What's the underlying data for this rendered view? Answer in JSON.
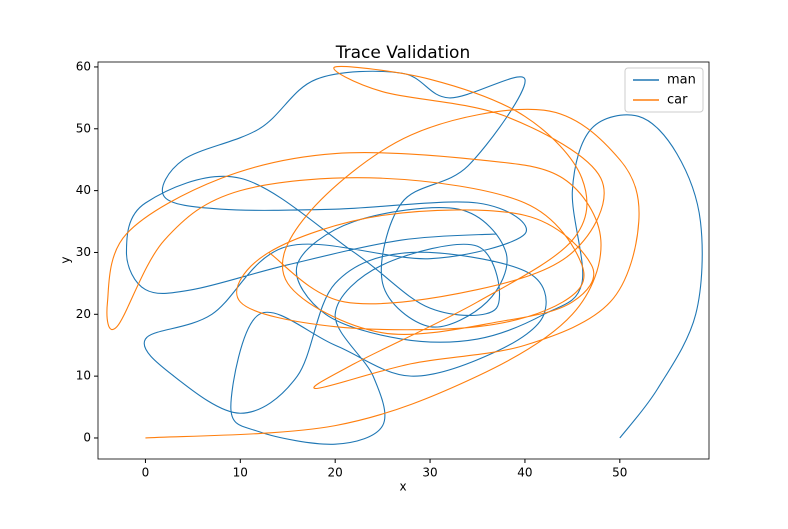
{
  "chart_data": {
    "type": "line",
    "title": "Trace Validation",
    "x_label": "x",
    "y_label": "y",
    "xlim": [
      -5,
      59.4
    ],
    "ylim": [
      -3.4,
      60.8
    ],
    "xticks": [
      0,
      10,
      20,
      30,
      40,
      50
    ],
    "yticks": [
      0,
      10,
      20,
      30,
      40,
      50,
      60
    ],
    "legend": "upper right",
    "series": [
      {
        "name": "man",
        "color": "#1f77b4",
        "x": [
          50,
          54,
          58,
          58.5,
          56,
          52,
          47,
          45,
          46,
          42,
          35,
          27,
          19,
          16,
          22,
          33,
          38,
          36,
          30,
          25,
          27,
          34,
          40,
          32,
          27,
          18,
          12,
          4,
          2,
          8,
          20,
          35,
          40,
          30,
          15,
          7,
          0,
          3,
          10,
          16,
          20,
          28,
          40,
          42,
          37,
          28,
          20,
          12,
          9,
          12,
          20,
          25,
          24,
          20,
          25,
          35,
          37,
          30,
          22,
          10,
          0,
          -2,
          0,
          5,
          15,
          27,
          37
        ],
        "values": [
          0,
          8,
          20,
          35,
          46,
          52,
          50,
          40,
          25,
          20,
          16,
          16,
          20,
          28,
          35,
          37,
          30,
          22,
          18,
          25,
          38,
          44,
          58,
          55,
          59,
          58,
          50,
          45,
          39,
          37,
          37,
          38,
          33,
          29,
          31,
          20,
          16,
          10,
          4,
          10,
          25,
          30,
          27,
          20,
          14,
          10,
          15,
          20,
          5,
          1,
          -1,
          2,
          10,
          20,
          28,
          31,
          21,
          21,
          30,
          42,
          38,
          30,
          24,
          24,
          28,
          32,
          33
        ]
      },
      {
        "name": "car",
        "color": "#ff7f0e",
        "x": [
          0,
          20,
          35,
          45,
          48,
          44,
          35,
          20,
          8,
          -2,
          -4,
          -3,
          2,
          10,
          25,
          40,
          46,
          44,
          35,
          20,
          10,
          13,
          25,
          40,
          47,
          45,
          38,
          25,
          15,
          17,
          28,
          42,
          50,
          52,
          49,
          40,
          28,
          18,
          22,
          35,
          45,
          46,
          40,
          30,
          20,
          25,
          38,
          48,
          45,
          35,
          21,
          13
        ],
        "values": [
          0,
          2,
          10,
          20,
          32,
          42,
          45,
          46,
          42,
          33,
          22,
          18,
          32,
          40,
          42,
          38,
          28,
          22,
          18,
          18,
          22,
          30,
          36,
          36,
          28,
          22,
          19,
          17,
          25,
          36,
          49,
          53,
          45,
          35,
          22,
          15,
          12,
          8,
          12,
          22,
          32,
          42,
          52,
          58,
          60,
          56,
          52,
          42,
          30,
          24,
          22,
          30
        ]
      }
    ]
  }
}
